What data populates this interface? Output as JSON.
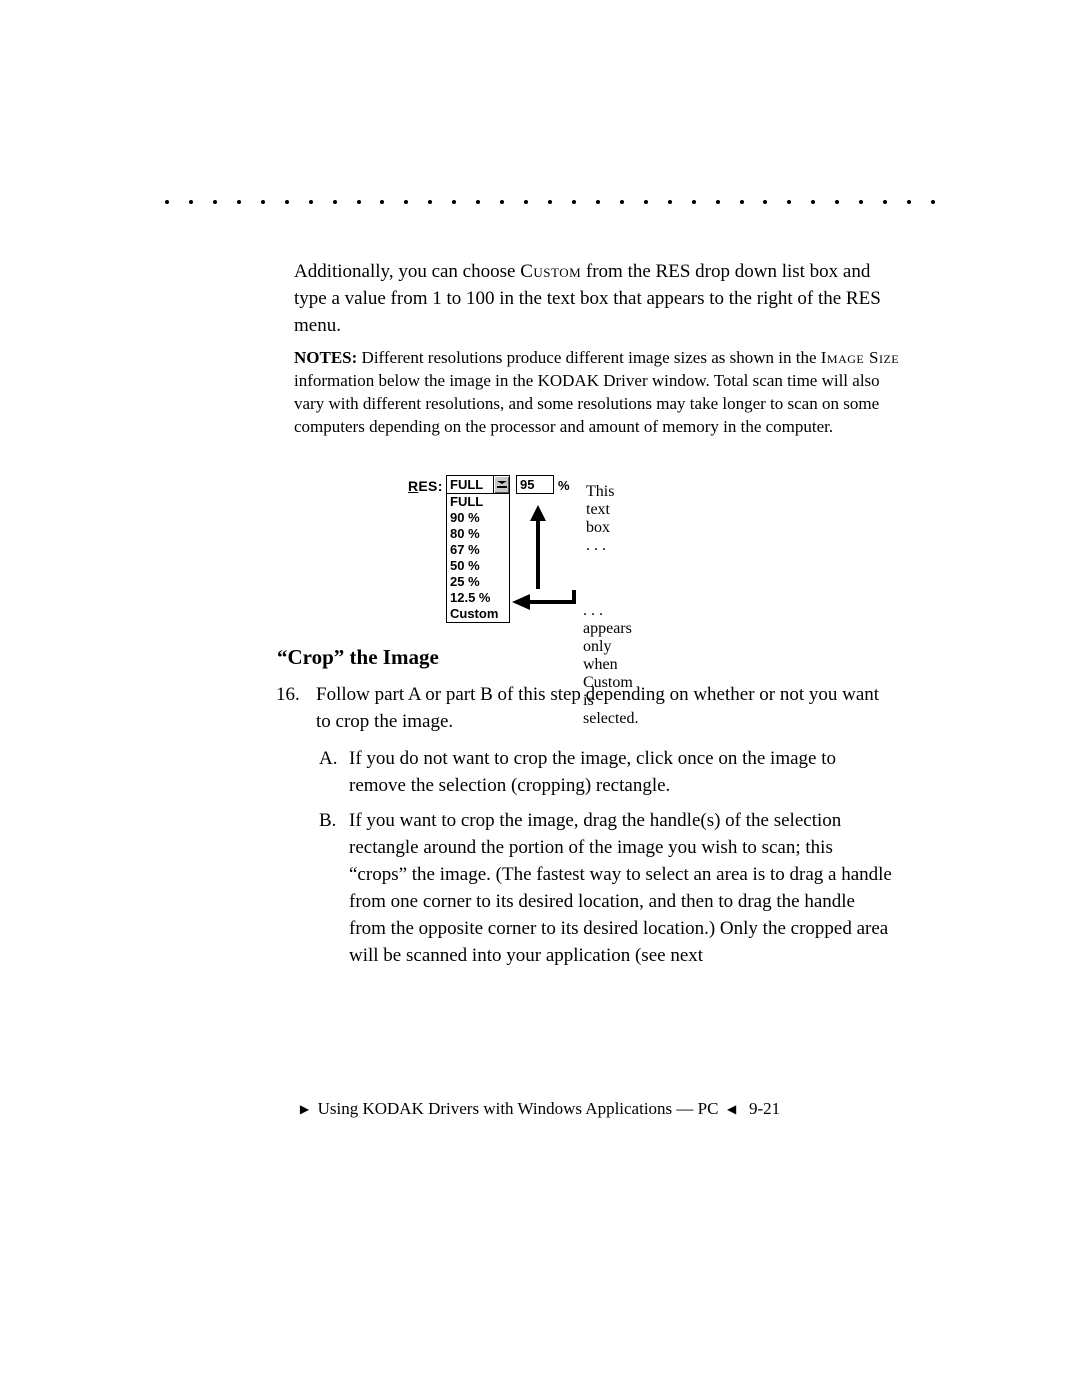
{
  "paragraph1": "Additionally, you can choose CUSTOM from the RES drop down list box and type a value from 1 to 100 in the text box that appears to the right of the RES menu.",
  "notes_label": "NOTES:",
  "notes_text_before": " Different resolutions produce different image sizes as shown in the ",
  "notes_smallcaps": "Image Size",
  "notes_text_after": " information below the image in the KODAK Driver window. Total scan time will also vary with different resolutions, and some resolutions may take longer to scan on some computers depending on the processor and amount of memory in the computer.",
  "res": {
    "label_underlined": "R",
    "label_rest": "ES:",
    "selected": "FULL",
    "options": [
      "FULL",
      "90 %",
      "80 %",
      "67 %",
      "50 %",
      "25 %",
      "12.5 %",
      "Custom"
    ],
    "custom_value": "95",
    "percent": "%"
  },
  "annotation1": "This text box . . .",
  "annotation2": ". . . appears only when Custom is selected.",
  "heading": "“Crop” the Image",
  "step_num": "16.",
  "step_text": "Follow part A or part B of this step depending on whether or not you want to crop the image.",
  "subA_letter": "A.",
  "subA_text": "If you do not want to crop the image, click once on the image to remove the selection (cropping) rectangle.",
  "subB_letter": "B.",
  "subB_text": "If you want to crop the image, drag the handle(s) of the selection rectangle around the portion of the image you wish to scan; this “crops” the image. (The fastest way to select an area is to drag a handle from one corner to its desired location, and then to drag the handle from the opposite corner to its desired location.) Only the cropped area will be scanned into your application (see next",
  "footer_text": "Using KODAK Drivers with Windows Applications — PC",
  "footer_page": "9-21",
  "colors": {
    "text": "#000000",
    "bg": "#ffffff"
  }
}
